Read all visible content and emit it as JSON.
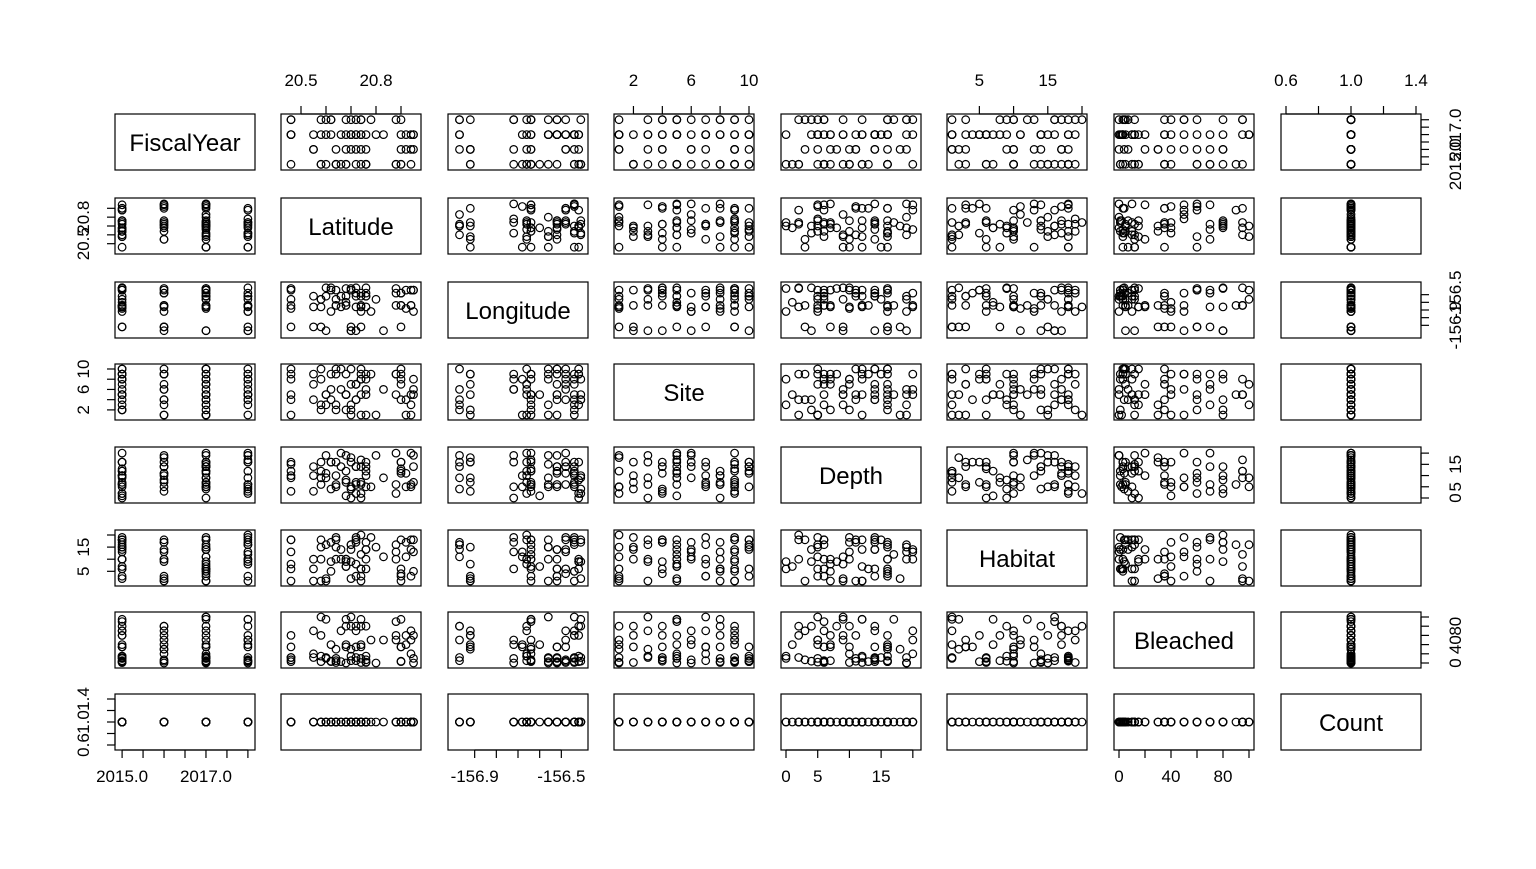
{
  "chart_data": {
    "type": "scatter",
    "subtype": "scatterplot-matrix",
    "title": "",
    "variables": [
      "FiscalYear",
      "Latitude",
      "Longitude",
      "Site",
      "Depth",
      "Habitat",
      "Bleached",
      "Count"
    ],
    "axes": [
      {
        "name": "FiscalYear",
        "range": [
          2014.95,
          2018.05
        ],
        "ticks": [
          2015,
          2015.5,
          2016,
          2016.5,
          2017,
          2017.5,
          2018
        ],
        "tick_labels": [
          "2015.0",
          "",
          "",
          "",
          "2017.0",
          "",
          ""
        ]
      },
      {
        "name": "Latitude",
        "range": [
          20.44,
          20.96
        ],
        "ticks": [
          20.5,
          20.6,
          20.7,
          20.8,
          20.9
        ],
        "tick_labels": [
          "20.5",
          "",
          "",
          "20.8",
          ""
        ]
      },
      {
        "name": "Longitude",
        "range": [
          -157.0,
          -156.4
        ],
        "ticks": [
          -156.9,
          -156.8,
          -156.7,
          -156.6,
          -156.5
        ],
        "tick_labels": [
          "-156.9",
          "",
          "",
          "",
          "-156.5"
        ]
      },
      {
        "name": "Site",
        "range": [
          1,
          10
        ],
        "ticks": [
          2,
          4,
          6,
          8,
          10
        ],
        "tick_labels": [
          "2",
          "",
          "6",
          "",
          "10"
        ]
      },
      {
        "name": "Depth",
        "range": [
          0,
          20.5
        ],
        "ticks": [
          0,
          5,
          10,
          15,
          20
        ],
        "tick_labels": [
          "0",
          "5",
          "",
          "15",
          ""
        ]
      },
      {
        "name": "Habitat",
        "range": [
          1,
          20
        ],
        "ticks": [
          5,
          10,
          15,
          20
        ],
        "tick_labels": [
          "5",
          "",
          "15",
          ""
        ]
      },
      {
        "name": "Bleached",
        "range": [
          0,
          100
        ],
        "ticks": [
          0,
          20,
          40,
          60,
          80,
          100
        ],
        "tick_labels": [
          "0",
          "",
          "40",
          "",
          "80",
          ""
        ]
      },
      {
        "name": "Count",
        "range": [
          0.6,
          1.4
        ],
        "ticks": [
          0.6,
          0.8,
          1.0,
          1.2,
          1.4
        ],
        "tick_labels": [
          "0.6",
          "",
          "1.0",
          "",
          "1.4"
        ]
      }
    ],
    "value_sets": {
      "FiscalYear": [
        2015,
        2016,
        2017,
        2018
      ],
      "Latitude": [
        20.46,
        20.55,
        20.58,
        20.6,
        20.62,
        20.64,
        20.66,
        20.68,
        20.7,
        20.72,
        20.74,
        20.76,
        20.78,
        20.8,
        20.83,
        20.86,
        20.88,
        20.9,
        20.92,
        20.94,
        20.95
      ],
      "Longitude": [
        -156.97,
        -156.92,
        -156.72,
        -156.68,
        -156.66,
        -156.64,
        -156.6,
        -156.56,
        -156.52,
        -156.48,
        -156.44,
        -156.42,
        -156.41
      ],
      "Site": [
        1,
        2,
        3,
        4,
        5,
        6,
        7,
        8,
        9,
        10
      ],
      "Depth": [
        0,
        1,
        2,
        3,
        4,
        5,
        6,
        7,
        8,
        9,
        10,
        11,
        12,
        13,
        14,
        15,
        16,
        17,
        18,
        19,
        20
      ],
      "Habitat": [
        1,
        2,
        3,
        4,
        5,
        6,
        7,
        8,
        9,
        10,
        11,
        12,
        13,
        14,
        15,
        16,
        17,
        18,
        19,
        20
      ],
      "Bleached": [
        0,
        1,
        2,
        3,
        4,
        5,
        7,
        10,
        12,
        15,
        20,
        25,
        30,
        35,
        40,
        50,
        60,
        70,
        80,
        85,
        90,
        95,
        100
      ],
      "Count": [
        1
      ]
    },
    "points_per_panel": 70,
    "notes_visible": "none"
  }
}
